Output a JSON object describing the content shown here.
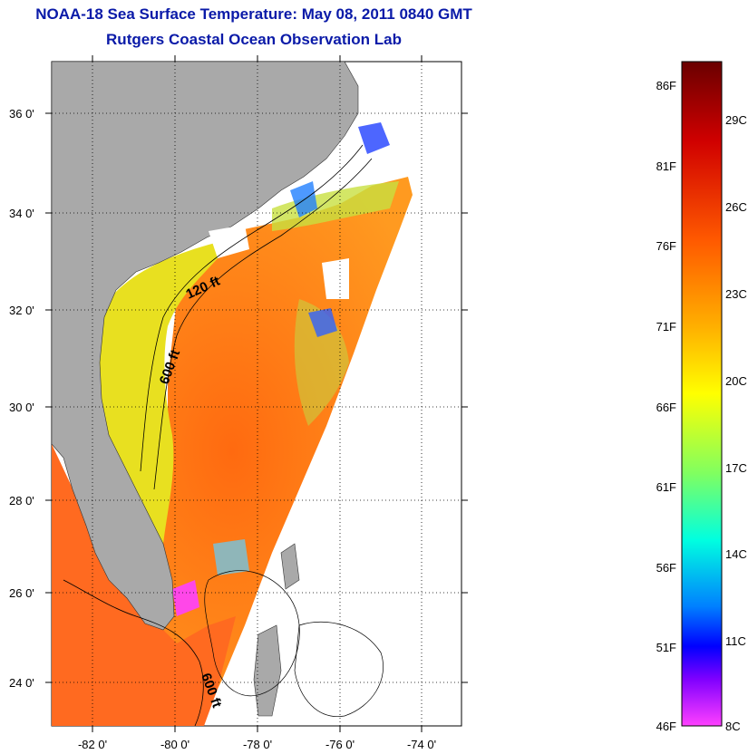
{
  "header": {
    "title": "NOAA-18 Sea Surface Temperature:  May 08, 2011 0840 GMT",
    "subtitle": "Rutgers Coastal Ocean Observation Lab"
  },
  "map": {
    "lat_ticks": [
      "36 0'",
      "34 0'",
      "32 0'",
      "30 0'",
      "28 0'",
      "26 0'",
      "24 0'"
    ],
    "lon_ticks": [
      "-82 0'",
      "-80 0'",
      "-78 0'",
      "-76 0'",
      "-74 0'"
    ],
    "contours": [
      {
        "label": "120 ft"
      },
      {
        "label": "600 ft"
      },
      {
        "label": "600 ft"
      }
    ],
    "land_color": "#a9a9a9",
    "ocean_warm_color": "#ff7a1a",
    "ocean_cool_color": "#ffd21a"
  },
  "colorbar": {
    "fahrenheit_labels": [
      "86F",
      "81F",
      "76F",
      "71F",
      "66F",
      "61F",
      "56F",
      "51F",
      "46F"
    ],
    "celsius_labels": [
      "29C",
      "26C",
      "23C",
      "20C",
      "17C",
      "14C",
      "11C",
      "8C"
    ],
    "colors": [
      "#7a0000",
      "#c80000",
      "#ff1a00",
      "#ff7000",
      "#ffb000",
      "#ffff00",
      "#a0ff40",
      "#00ffcc",
      "#00a0ff",
      "#0030ff",
      "#0000ff",
      "#8000ff",
      "#ff40ff"
    ]
  }
}
